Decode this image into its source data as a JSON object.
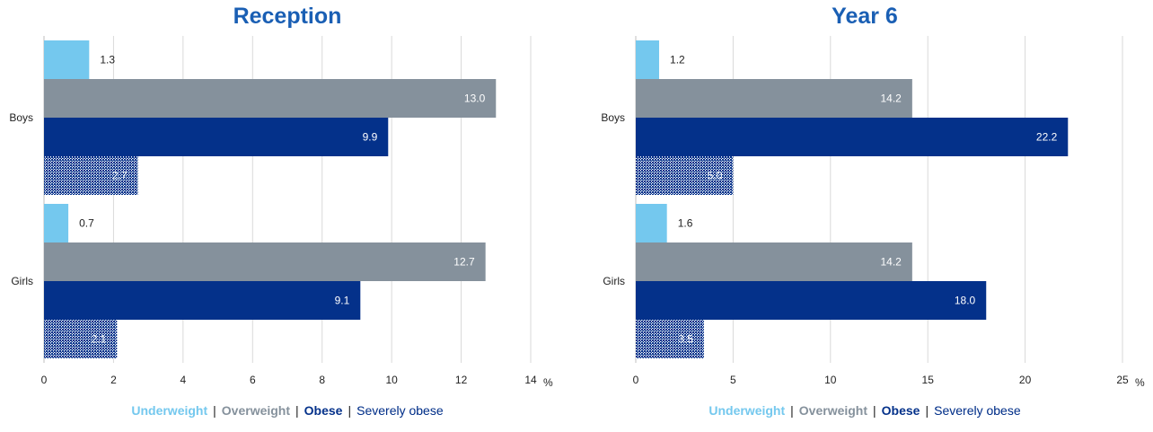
{
  "legend": {
    "underweight": "Underweight",
    "overweight": "Overweight",
    "obese": "Obese",
    "severely_obese": "Severely obese",
    "separator": "|"
  },
  "colors": {
    "underweight": "#74c8ee",
    "overweight": "#85919c",
    "obese": "#04318a",
    "severely_obese": "#04318a",
    "title": "#1a5fb4",
    "grid": "#d9d9d9"
  },
  "chart_data": [
    {
      "type": "bar",
      "orientation": "horizontal",
      "title": "Reception",
      "categories": [
        "Boys",
        "Girls"
      ],
      "series": [
        {
          "name": "Underweight",
          "values": [
            1.3,
            0.7
          ]
        },
        {
          "name": "Overweight",
          "values": [
            13.0,
            12.7
          ]
        },
        {
          "name": "Obese",
          "values": [
            9.9,
            9.1
          ]
        },
        {
          "name": "Severely obese",
          "values": [
            2.7,
            2.1
          ]
        }
      ],
      "xlim": [
        0,
        14
      ],
      "xticks": [
        0,
        2,
        4,
        6,
        8,
        10,
        12,
        14
      ],
      "xunit": "%",
      "grid": true,
      "legend": "bottom"
    },
    {
      "type": "bar",
      "orientation": "horizontal",
      "title": "Year 6",
      "categories": [
        "Boys",
        "Girls"
      ],
      "series": [
        {
          "name": "Underweight",
          "values": [
            1.2,
            1.6
          ]
        },
        {
          "name": "Overweight",
          "values": [
            14.2,
            14.2
          ]
        },
        {
          "name": "Obese",
          "values": [
            22.2,
            18.0
          ]
        },
        {
          "name": "Severely obese",
          "values": [
            5.0,
            3.5
          ]
        }
      ],
      "xlim": [
        0,
        25
      ],
      "xticks": [
        0,
        5,
        10,
        15,
        20,
        25
      ],
      "xunit": "%",
      "grid": true,
      "legend": "bottom"
    }
  ]
}
